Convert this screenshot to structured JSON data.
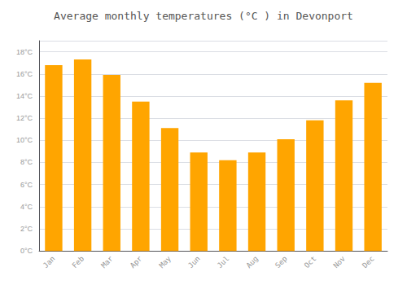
{
  "chart_data": {
    "type": "bar",
    "title": "Average monthly temperatures (°C ) in Devonport",
    "categories": [
      "Jan",
      "Feb",
      "Mar",
      "Apr",
      "May",
      "Jun",
      "Jul",
      "Aug",
      "Sep",
      "Oct",
      "Nov",
      "Dec"
    ],
    "values": [
      16.8,
      17.3,
      15.9,
      13.5,
      11.1,
      8.9,
      8.2,
      8.9,
      10.1,
      11.8,
      13.6,
      15.2
    ],
    "color": "#FFA500",
    "ylim": [
      0,
      19
    ],
    "yticks": [
      {
        "value": 0,
        "label": "0°C"
      },
      {
        "value": 2,
        "label": "2°C"
      },
      {
        "value": 4,
        "label": "4°C"
      },
      {
        "value": 6,
        "label": "6°C"
      },
      {
        "value": 8,
        "label": "8°C"
      },
      {
        "value": 10,
        "label": "10°C"
      },
      {
        "value": 12,
        "label": "12°C"
      },
      {
        "value": 14,
        "label": "14°C"
      },
      {
        "value": 16,
        "label": "16°C"
      },
      {
        "value": 18,
        "label": "18°C"
      }
    ],
    "grid": true
  }
}
